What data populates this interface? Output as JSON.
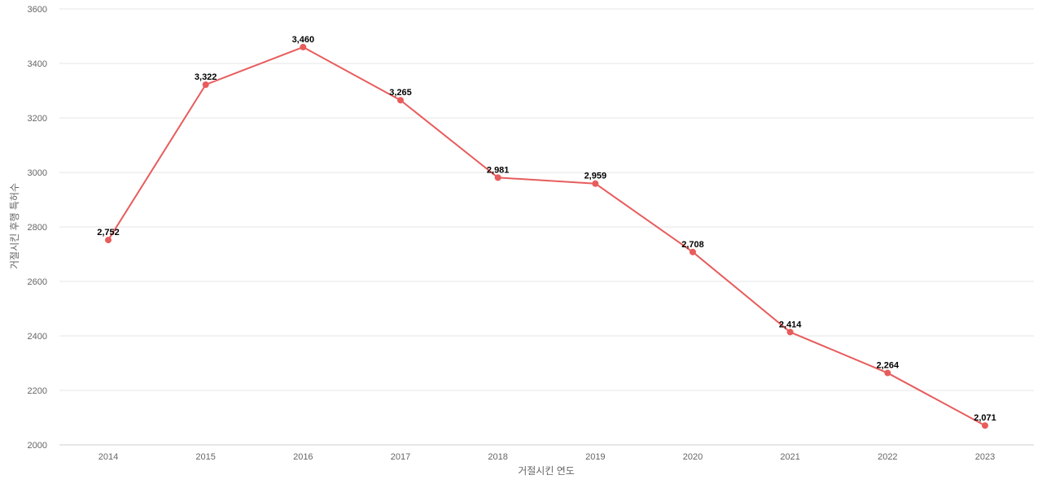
{
  "chart_data": {
    "type": "line",
    "xlabel": "거절시킨 연도",
    "ylabel": "거절시킨 후행 특허수",
    "categories": [
      "2014",
      "2015",
      "2016",
      "2017",
      "2018",
      "2019",
      "2020",
      "2021",
      "2022",
      "2023"
    ],
    "series": [
      {
        "values": [
          2752,
          3322,
          3460,
          3265,
          2981,
          2959,
          2708,
          2414,
          2264,
          2071
        ],
        "data_labels": [
          "2,752",
          "3,322",
          "3,460",
          "3,265",
          "2,981",
          "2,959",
          "2,708",
          "2,414",
          "2,264",
          "2,071"
        ],
        "color": "#e85c5c"
      }
    ],
    "ylim": [
      2000,
      3600
    ],
    "yticks": [
      2000,
      2200,
      2400,
      2600,
      2800,
      3000,
      3200,
      3400,
      3600
    ],
    "grid": true,
    "legend": "none"
  }
}
